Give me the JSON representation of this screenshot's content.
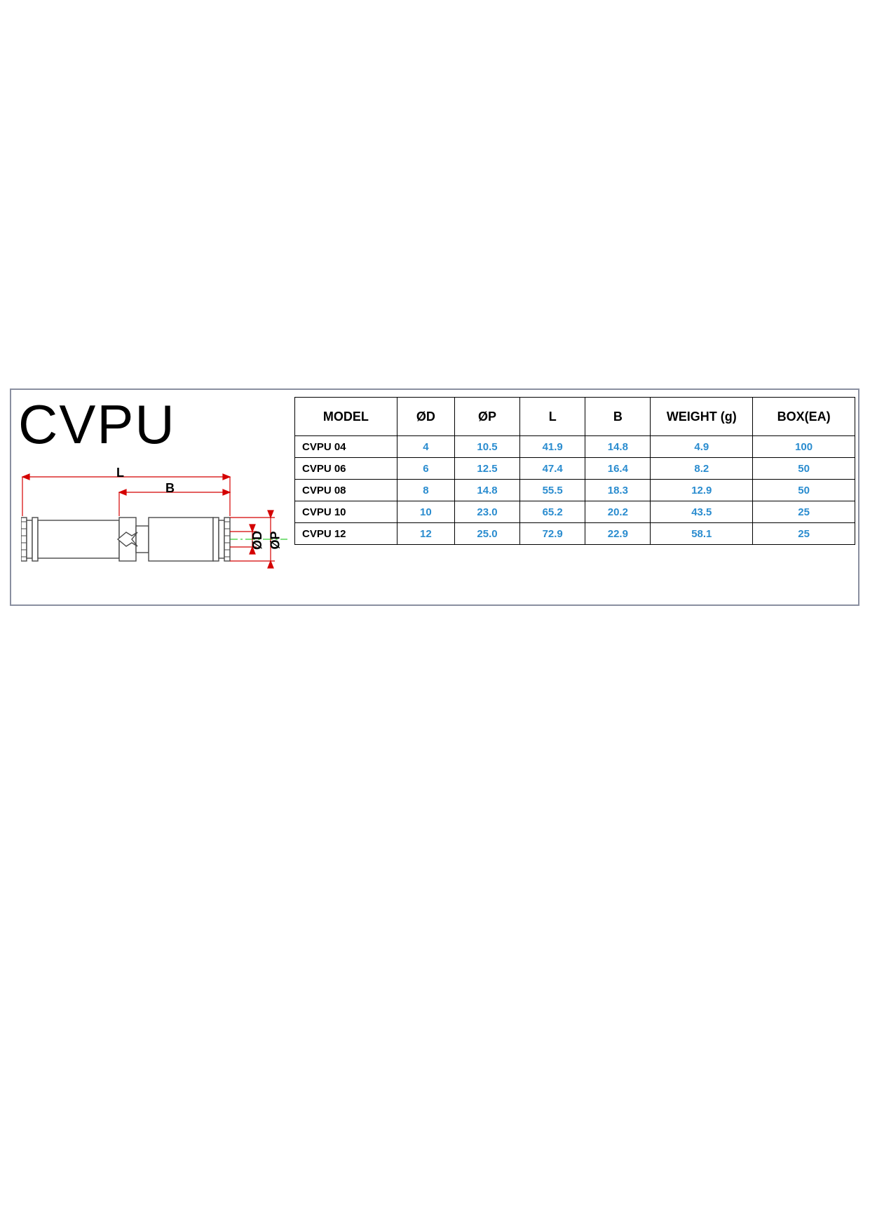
{
  "title": "CVPU",
  "diagram": {
    "colors": {
      "dimension_line": "#d40000",
      "centerline": "#00c000",
      "body_stroke": "#4a4a4a",
      "body_fill": "#ffffff",
      "line_width": 1.4
    },
    "label_L": "L",
    "label_B": "B",
    "label_D": "ØD",
    "label_P": "ØP"
  },
  "table": {
    "headers": {
      "model": "MODEL",
      "d": "ØD",
      "p": "ØP",
      "l": "L",
      "b": "B",
      "weight": "WEIGHT (g)",
      "box": "BOX(EA)"
    },
    "value_color": "#2a8ccf",
    "header_color": "#000000",
    "border_color": "#000000",
    "rows": [
      {
        "model": "CVPU 04",
        "d": "4",
        "p": "10.5",
        "l": "41.9",
        "b": "14.8",
        "weight": "4.9",
        "box": "100"
      },
      {
        "model": "CVPU 06",
        "d": "6",
        "p": "12.5",
        "l": "47.4",
        "b": "16.4",
        "weight": "8.2",
        "box": "50"
      },
      {
        "model": "CVPU 08",
        "d": "8",
        "p": "14.8",
        "l": "55.5",
        "b": "18.3",
        "weight": "12.9",
        "box": "50"
      },
      {
        "model": "CVPU 10",
        "d": "10",
        "p": "23.0",
        "l": "65.2",
        "b": "20.2",
        "weight": "43.5",
        "box": "25"
      },
      {
        "model": "CVPU 12",
        "d": "12",
        "p": "25.0",
        "l": "72.9",
        "b": "22.9",
        "weight": "58.1",
        "box": "25"
      }
    ]
  }
}
